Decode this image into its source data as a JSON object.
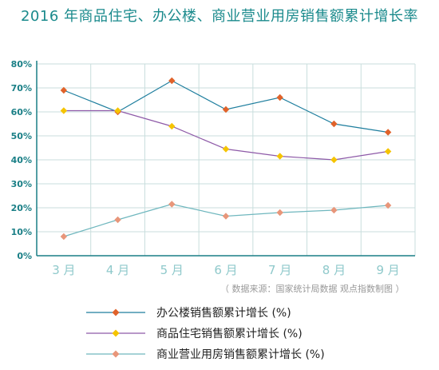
{
  "chart_data": {
    "type": "line",
    "title": "2016 年商品住宅、办公楼、商业营业用房销售额累计增长率",
    "categories": [
      "3 月",
      "4 月",
      "5 月",
      "6 月",
      "7 月",
      "8 月",
      "9 月"
    ],
    "y_ticks": [
      "0%",
      "10%",
      "20%",
      "30%",
      "40%",
      "50%",
      "60%",
      "70%",
      "80%"
    ],
    "ylim": [
      0,
      80
    ],
    "grid": true,
    "legend_position": "bottom",
    "series": [
      {
        "name": "办公楼销售额累计增长 (%)",
        "values": [
          69,
          60,
          73,
          61,
          66,
          55,
          51.5
        ],
        "color": "#1e7e9e",
        "marker_color": "#e0622a"
      },
      {
        "name": "商品住宅销售额累计增长 (%)",
        "values": [
          60.5,
          60.5,
          54,
          44.5,
          41.5,
          40,
          43.5
        ],
        "color": "#8e5aa8",
        "marker_color": "#f5c400"
      },
      {
        "name": "商业营业用房销售额累计增长 (%)",
        "values": [
          8,
          15,
          21.5,
          16.5,
          18,
          19,
          21
        ],
        "color": "#6fb7be",
        "marker_color": "#e8967a"
      }
    ],
    "source": "（ 数据来源：国家统计局数据 观点指数制图 ）"
  }
}
